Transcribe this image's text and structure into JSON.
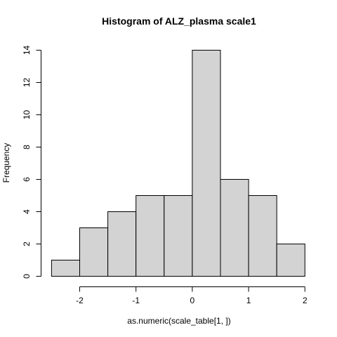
{
  "chart_data": {
    "type": "bar",
    "title": "Histogram of  ALZ_plasma scale1",
    "xlabel": "as.numeric(scale_table[1, ])",
    "ylabel": "Frequency",
    "bins": [
      {
        "from": -2.5,
        "to": -2.0,
        "count": 1
      },
      {
        "from": -2.0,
        "to": -1.5,
        "count": 3
      },
      {
        "from": -1.5,
        "to": -1.0,
        "count": 4
      },
      {
        "from": -1.0,
        "to": -0.5,
        "count": 5
      },
      {
        "from": -0.5,
        "to": 0.0,
        "count": 5
      },
      {
        "from": 0.0,
        "to": 0.5,
        "count": 14
      },
      {
        "from": 0.5,
        "to": 1.0,
        "count": 6
      },
      {
        "from": 1.0,
        "to": 1.5,
        "count": 5
      },
      {
        "from": 1.5,
        "to": 2.0,
        "count": 2
      }
    ],
    "xlim": [
      -2.5,
      2.0
    ],
    "ylim": [
      0,
      14
    ],
    "xticks": [
      -2,
      -1,
      0,
      1,
      2
    ],
    "yticks": [
      0,
      2,
      4,
      6,
      8,
      10,
      12,
      14
    ],
    "xtick_labels": [
      "-2",
      "-1",
      "0",
      "1",
      "2"
    ],
    "ytick_labels": [
      "0",
      "2",
      "4",
      "6",
      "8",
      "10",
      "12",
      "14"
    ],
    "grid": false,
    "legend": "none",
    "bar_color": "#d3d3d3"
  }
}
